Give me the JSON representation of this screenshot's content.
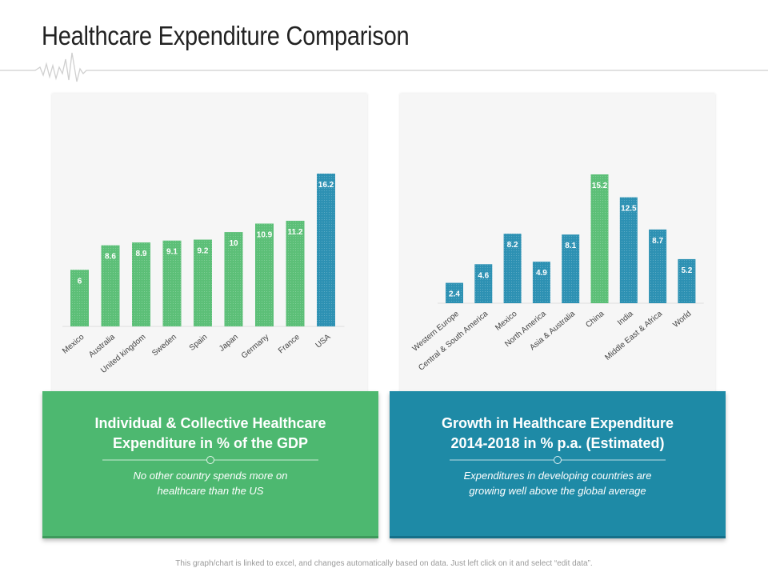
{
  "page": {
    "title": "Healthcare Expenditure Comparison",
    "footnote": "This graph/chart is linked to excel, and changes automatically based on data. Just left click on it and select “edit data”."
  },
  "colors": {
    "green": "#4db870",
    "blue": "#1e8aa6",
    "bar_green": "#5cbf77",
    "bar_blue": "#2d91b3"
  },
  "chart_data": [
    {
      "type": "bar",
      "title": "",
      "categories": [
        "Mexico",
        "Australia",
        "United kingdom",
        "Sweden",
        "Spain",
        "Japan",
        "Germany",
        "France",
        "USA"
      ],
      "values": [
        6,
        8.6,
        8.9,
        9.1,
        9.2,
        10,
        10.9,
        11.2,
        16.2
      ],
      "highlight": "USA",
      "xlabel": "",
      "ylabel": "",
      "ylim": [
        0,
        16.2
      ],
      "grid": false,
      "data_labels": true
    },
    {
      "type": "bar",
      "title": "",
      "categories": [
        "Western Europe",
        "Central & South America",
        "Mexico",
        "North America",
        "Asia & Australia",
        "China",
        "India",
        "Middle East & Africa",
        "World"
      ],
      "values": [
        2.4,
        4.6,
        8.2,
        4.9,
        8.1,
        15.2,
        12.5,
        8.7,
        5.2
      ],
      "highlight": "China",
      "xlabel": "",
      "ylabel": "",
      "ylim": [
        0,
        15.2
      ],
      "grid": false,
      "data_labels": true
    }
  ],
  "cards": [
    {
      "heading_line1": "Individual & Collective Healthcare",
      "heading_line2": "Expenditure in % of the GDP",
      "desc_line1": "No other country spends more on",
      "desc_line2": "healthcare than the US"
    },
    {
      "heading_line1": "Growth in Healthcare Expenditure",
      "heading_line2": "2014-2018 in % p.a. (Estimated)",
      "desc_line1": "Expenditures in developing countries are",
      "desc_line2": "growing well above the global average"
    }
  ]
}
